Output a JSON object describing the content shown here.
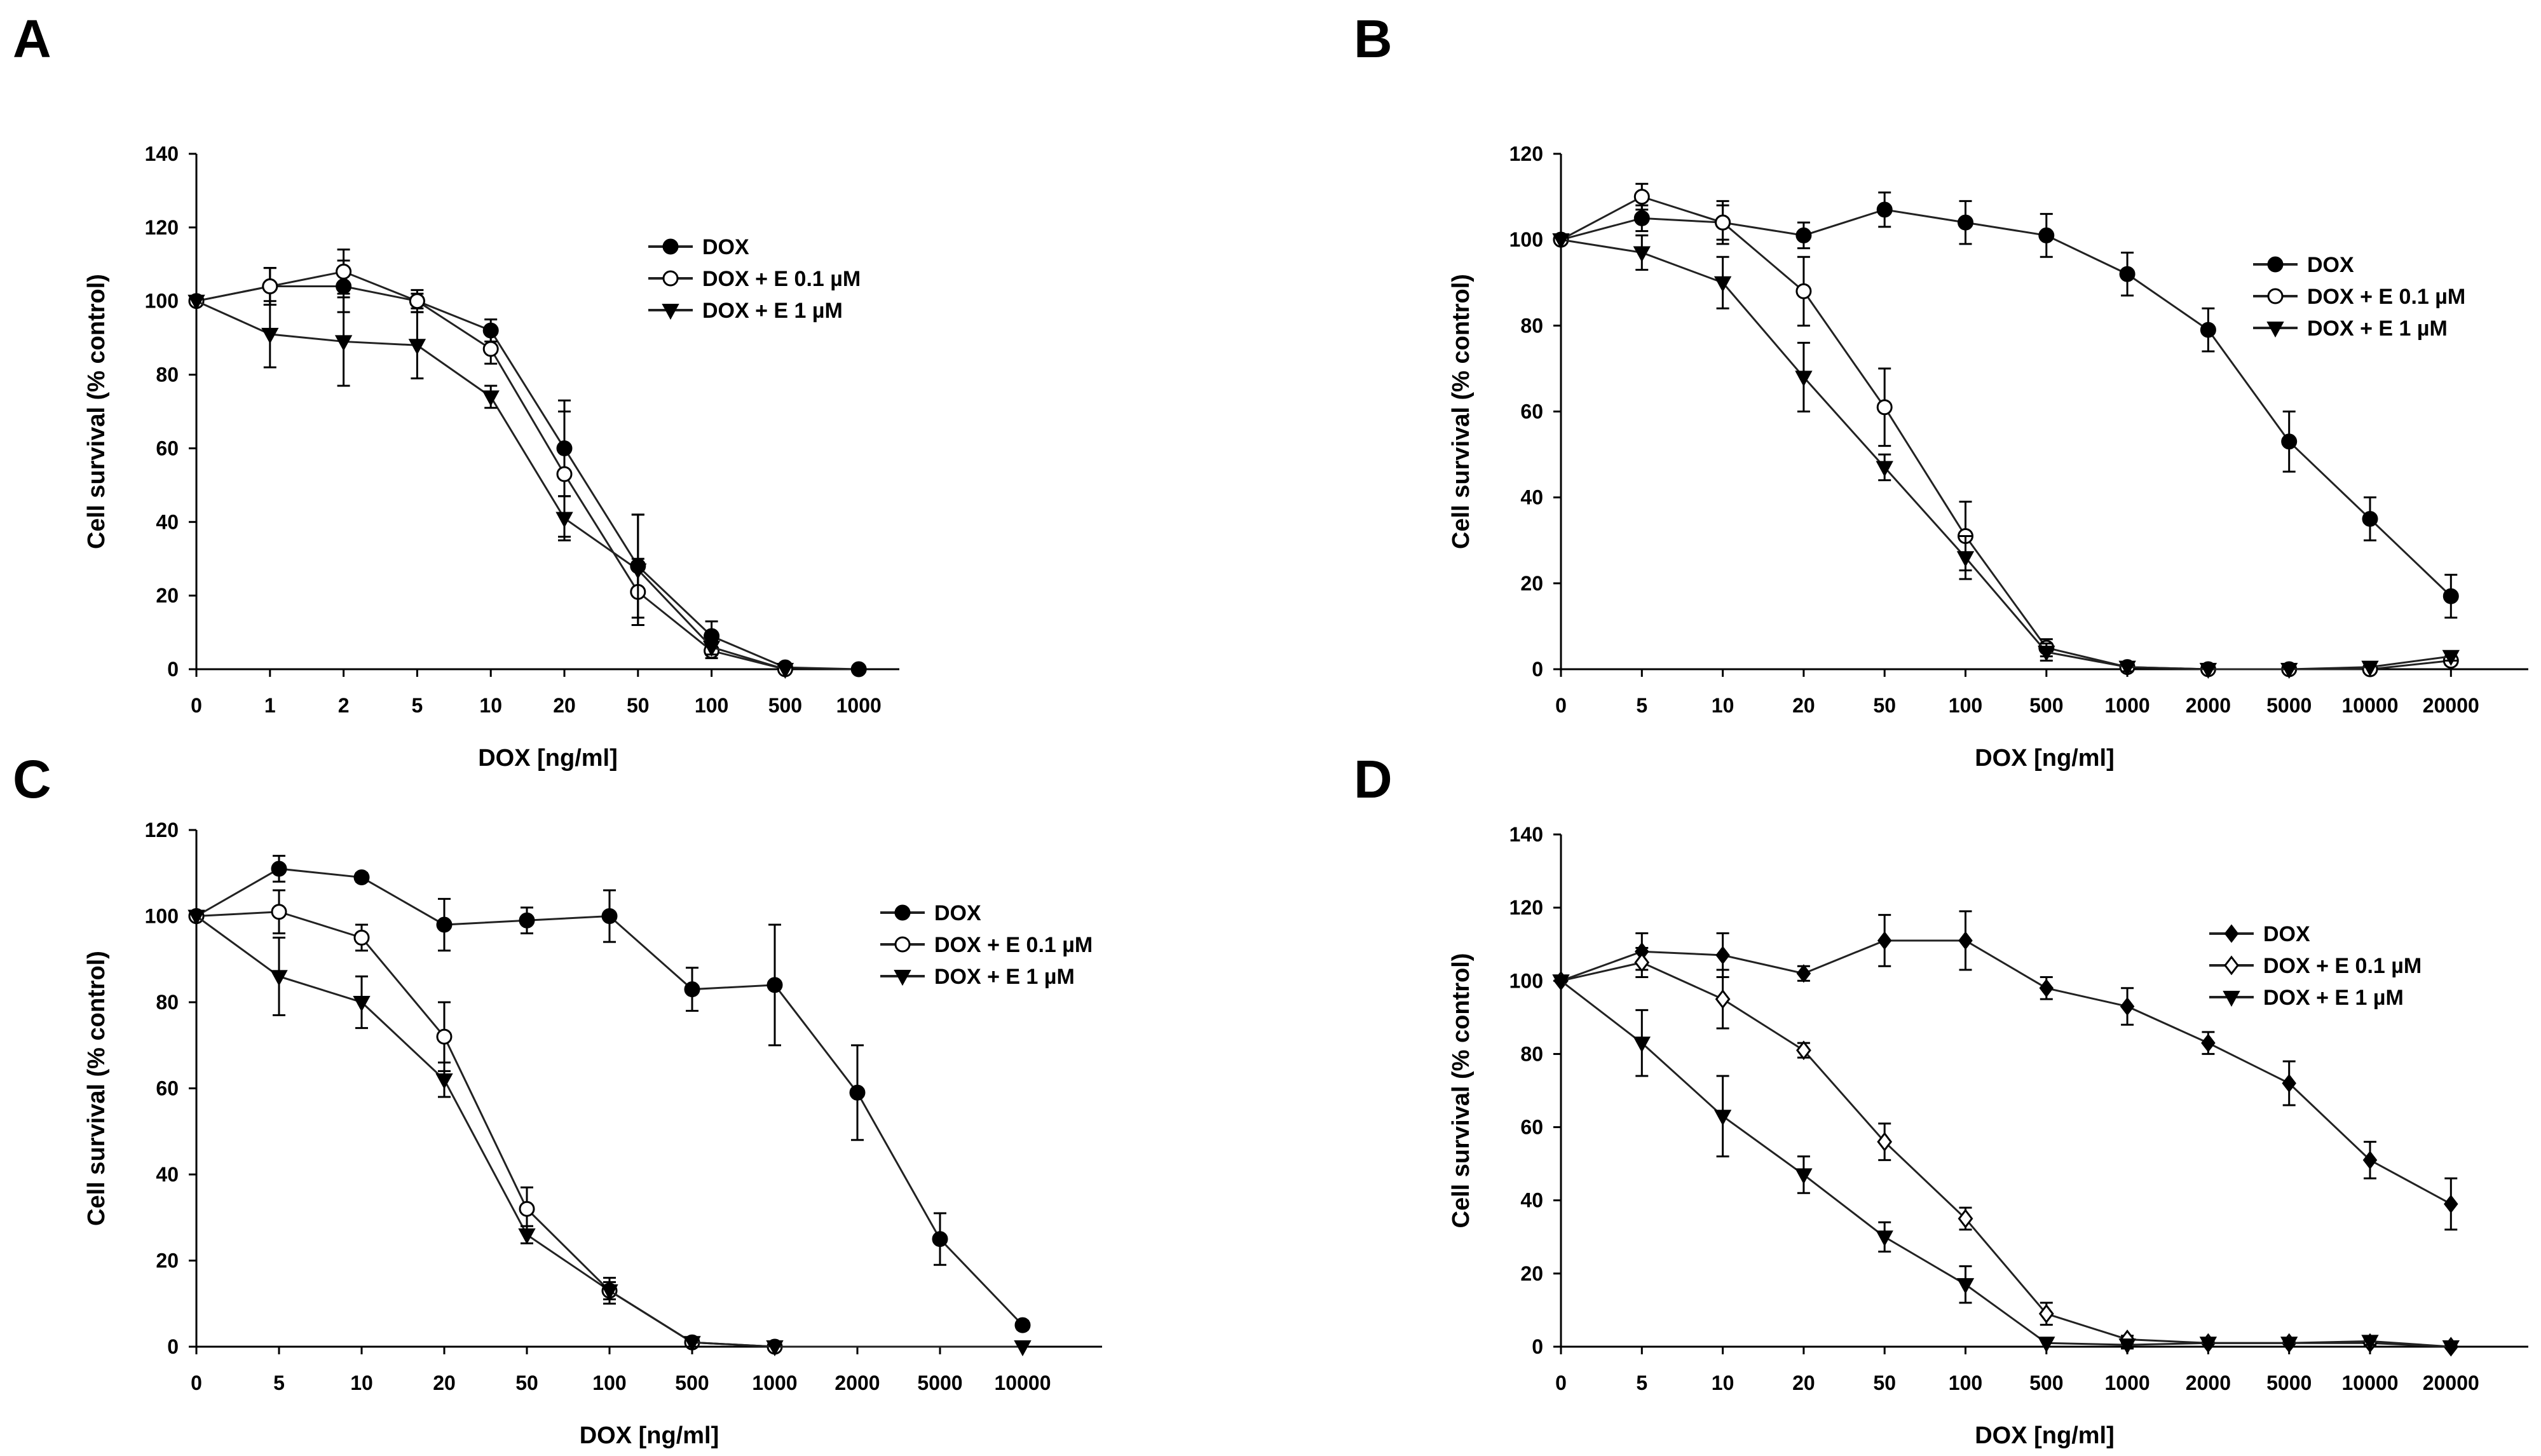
{
  "chart_data": [
    {
      "type": "line",
      "panel_label": "A",
      "xlabel": "DOX [ng/ml]",
      "ylabel": "Cell survival (% control)",
      "ylim": [
        0,
        140
      ],
      "yticks": [
        0,
        20,
        40,
        60,
        80,
        100,
        120,
        140
      ],
      "categories": [
        "0",
        "1",
        "2",
        "5",
        "10",
        "20",
        "50",
        "100",
        "500",
        "1000"
      ],
      "legend_position": "top-right",
      "series": [
        {
          "name": "DOX",
          "marker": "filled-circle",
          "values": [
            100,
            104,
            104,
            100,
            92,
            60,
            28,
            9,
            0.5,
            0
          ],
          "errors": [
            0,
            5,
            7,
            2,
            3,
            13,
            14,
            4,
            0,
            0
          ]
        },
        {
          "name": "DOX + E 0.1 µM",
          "marker": "open-circle",
          "values": [
            100,
            104,
            108,
            100,
            87,
            53,
            21,
            5,
            0,
            null
          ],
          "errors": [
            0,
            5,
            6,
            3,
            4,
            17,
            9,
            2,
            0,
            0
          ]
        },
        {
          "name": "DOX + E 1 µM",
          "marker": "filled-triangle-down",
          "values": [
            100,
            91,
            89,
            88,
            74,
            41,
            27,
            6,
            0,
            null
          ],
          "errors": [
            0,
            9,
            12,
            9,
            3,
            6,
            15,
            2,
            0,
            0
          ]
        }
      ]
    },
    {
      "type": "line",
      "panel_label": "B",
      "xlabel": "DOX [ng/ml]",
      "ylabel": "Cell survival (% control)",
      "ylim": [
        0,
        120
      ],
      "yticks": [
        0,
        20,
        40,
        60,
        80,
        100,
        120
      ],
      "categories": [
        "0",
        "5",
        "10",
        "20",
        "50",
        "100",
        "500",
        "1000",
        "2000",
        "5000",
        "10000",
        "20000"
      ],
      "legend_position": "right",
      "series": [
        {
          "name": "DOX",
          "marker": "filled-circle",
          "values": [
            100,
            105,
            104,
            101,
            107,
            104,
            101,
            92,
            79,
            53,
            35,
            17
          ],
          "errors": [
            0,
            3,
            4,
            3,
            4,
            5,
            5,
            5,
            5,
            7,
            5,
            5
          ]
        },
        {
          "name": "DOX + E 0.1 µM",
          "marker": "open-circle",
          "values": [
            100,
            110,
            104,
            88,
            61,
            31,
            5,
            0.5,
            0,
            0,
            0,
            2
          ],
          "errors": [
            0,
            3,
            5,
            8,
            9,
            8,
            2,
            1,
            0,
            0,
            0,
            1
          ]
        },
        {
          "name": "DOX + E 1 µM",
          "marker": "filled-triangle-down",
          "values": [
            100,
            97,
            90,
            68,
            47,
            26,
            4,
            0.5,
            0,
            0,
            0.5,
            3
          ],
          "errors": [
            0,
            4,
            6,
            8,
            3,
            5,
            2,
            1,
            0,
            0,
            0,
            1
          ]
        }
      ]
    },
    {
      "type": "line",
      "panel_label": "C",
      "xlabel": "DOX [ng/ml]",
      "ylabel": "Cell survival (% control)",
      "ylim": [
        0,
        120
      ],
      "yticks": [
        0,
        20,
        40,
        60,
        80,
        100,
        120
      ],
      "categories": [
        "0",
        "5",
        "10",
        "20",
        "50",
        "100",
        "500",
        "1000",
        "2000",
        "5000",
        "10000"
      ],
      "legend_position": "top-right",
      "series": [
        {
          "name": "DOX",
          "marker": "filled-circle",
          "values": [
            100,
            111,
            109,
            98,
            99,
            100,
            83,
            84,
            59,
            25,
            5
          ],
          "errors": [
            0,
            3,
            1,
            6,
            3,
            6,
            5,
            14,
            11,
            6,
            1
          ]
        },
        {
          "name": "DOX +  E 0.1 µM",
          "marker": "open-circle",
          "values": [
            100,
            101,
            95,
            72,
            32,
            13,
            1,
            0,
            null,
            null,
            null
          ],
          "errors": [
            0,
            5,
            3,
            8,
            5,
            3,
            1,
            0,
            0,
            0,
            0
          ]
        },
        {
          "name": "DOX + E 1 µM",
          "marker": "filled-triangle-down",
          "values": [
            100,
            86,
            80,
            62,
            26,
            13,
            1,
            0,
            null,
            null,
            0
          ],
          "errors": [
            0,
            9,
            6,
            4,
            2,
            2,
            1,
            0,
            0,
            0,
            0
          ]
        }
      ]
    },
    {
      "type": "line",
      "panel_label": "D",
      "xlabel": "DOX [ng/ml]",
      "ylabel": "Cell survival (% control)",
      "ylim": [
        0,
        140
      ],
      "yticks": [
        0,
        20,
        40,
        60,
        80,
        100,
        120,
        140
      ],
      "categories": [
        "0",
        "5",
        "10",
        "20",
        "50",
        "100",
        "500",
        "1000",
        "2000",
        "5000",
        "10000",
        "20000"
      ],
      "legend_position": "top-right",
      "series": [
        {
          "name": "DOX",
          "marker": "filled-diamond",
          "values": [
            100,
            108,
            107,
            102,
            111,
            111,
            98,
            93,
            83,
            72,
            51,
            39
          ],
          "errors": [
            0,
            5,
            6,
            2,
            7,
            8,
            3,
            5,
            3,
            6,
            5,
            7
          ]
        },
        {
          "name": "DOX +  E 0.1 µM",
          "marker": "open-diamond",
          "values": [
            100,
            105,
            95,
            81,
            56,
            35,
            9,
            2,
            1,
            1,
            1,
            0
          ],
          "errors": [
            0,
            4,
            8,
            2,
            5,
            3,
            3,
            1,
            1,
            1,
            1,
            0
          ]
        },
        {
          "name": "DOX + E 1 µM",
          "marker": "filled-triangle-down",
          "values": [
            100,
            83,
            63,
            47,
            30,
            17,
            1,
            0.5,
            1,
            1,
            1.5,
            0
          ],
          "errors": [
            0,
            9,
            11,
            5,
            4,
            5,
            1,
            1,
            1,
            1,
            1,
            0
          ]
        }
      ]
    }
  ]
}
